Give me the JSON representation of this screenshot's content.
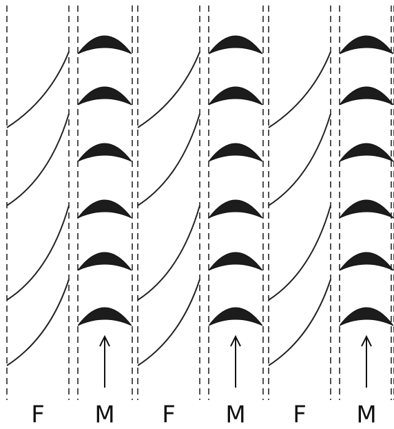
{
  "labels": [
    "F",
    "M",
    "F",
    "M",
    "F",
    "M"
  ]
}
